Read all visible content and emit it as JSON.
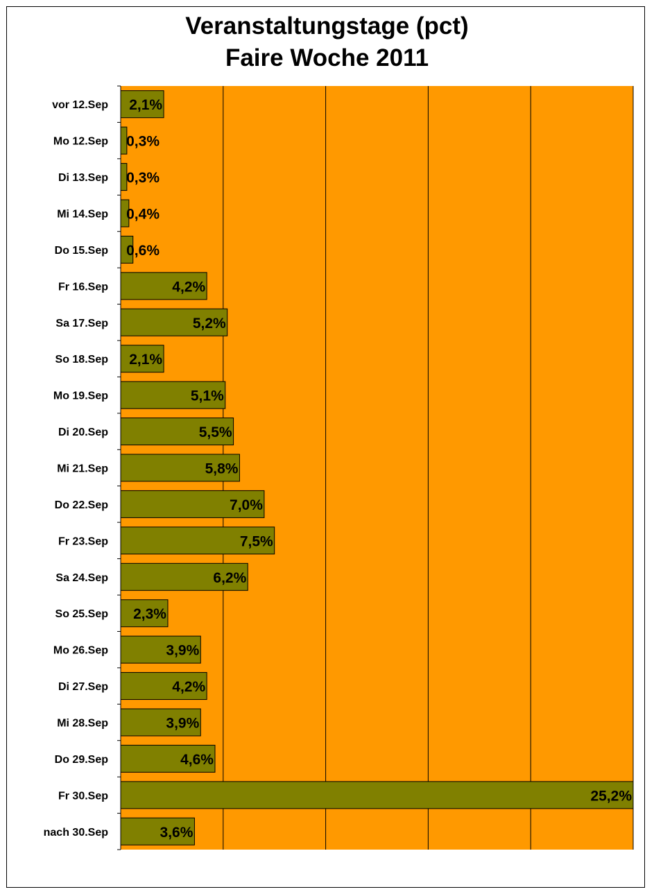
{
  "chart_data": {
    "type": "bar",
    "orientation": "horizontal",
    "title": [
      "Veranstaltungstage (pct)",
      "Faire Woche 2011"
    ],
    "categories": [
      "vor 12.Sep",
      "Mo 12.Sep",
      "Di 13.Sep",
      "Mi 14.Sep",
      "Do 15.Sep",
      "Fr 16.Sep",
      "Sa 17.Sep",
      "So 18.Sep",
      "Mo 19.Sep",
      "Di 20.Sep",
      "Mi 21.Sep",
      "Do 22.Sep",
      "Fr 23.Sep",
      "Sa 24.Sep",
      "So 25.Sep",
      "Mo 26.Sep",
      "Di 27.Sep",
      "Mi 28.Sep",
      "Do 29.Sep",
      "Fr 30.Sep",
      "nach 30.Sep"
    ],
    "values": [
      2.1,
      0.3,
      0.3,
      0.4,
      0.6,
      4.2,
      5.2,
      2.1,
      5.1,
      5.5,
      5.8,
      7.0,
      7.5,
      6.2,
      2.3,
      3.9,
      4.2,
      3.9,
      4.6,
      25.2,
      3.6
    ],
    "value_labels": [
      "2,1%",
      "0,3%",
      "0,3%",
      "0,4%",
      "0,6%",
      "4,2%",
      "5,2%",
      "2,1%",
      "5,1%",
      "5,5%",
      "5,8%",
      "7,0%",
      "7,5%",
      "6,2%",
      "2,3%",
      "3,9%",
      "4,2%",
      "3,9%",
      "4,6%",
      "25,2%",
      "3,6%"
    ],
    "xlim": [
      0,
      25
    ],
    "grid": true,
    "colors": {
      "bar": "#808000",
      "plot_background": "#FF9900",
      "gridline": "#000000"
    }
  }
}
